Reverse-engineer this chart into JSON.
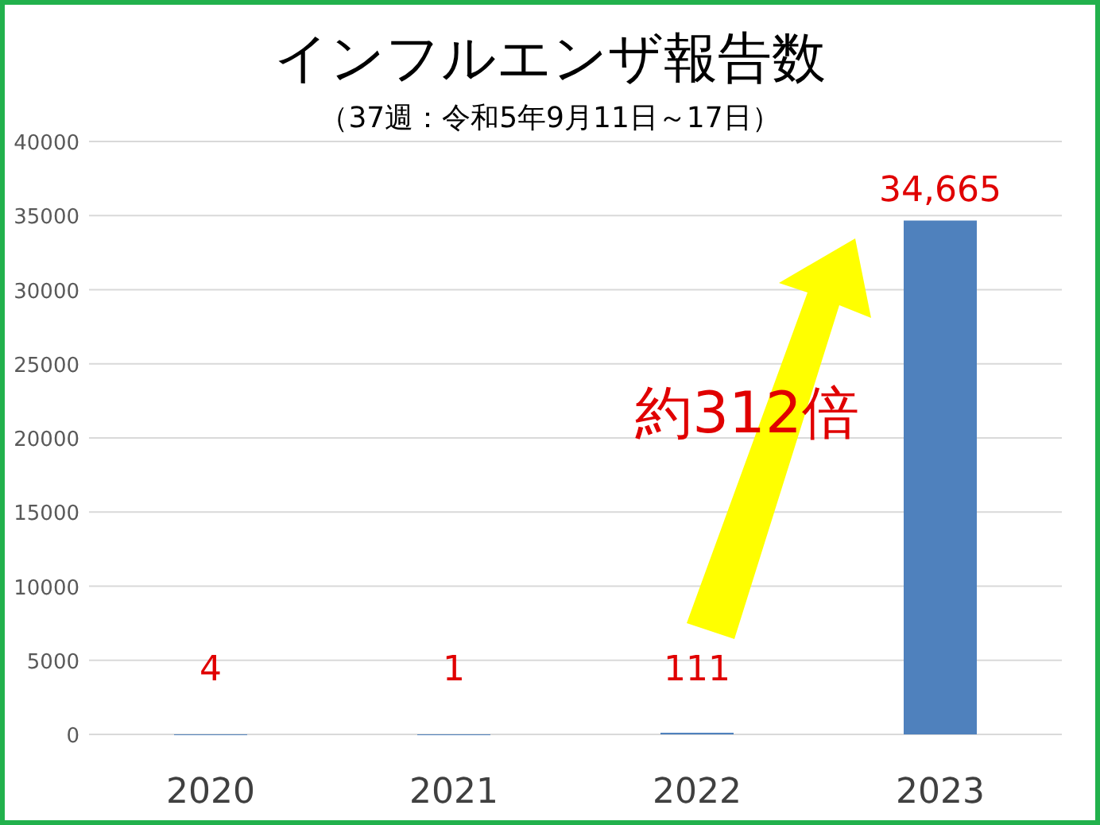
{
  "chart_data": {
    "type": "bar",
    "title": "インフルエンザ報告数",
    "subtitle": "（37週：令和5年9月11日～17日）",
    "categories": [
      "2020",
      "2021",
      "2022",
      "2023"
    ],
    "values": [
      4,
      1,
      111,
      34665
    ],
    "value_labels": [
      "4",
      "1",
      "111",
      "34,665"
    ],
    "color": "#4f81bd",
    "ylim": [
      0,
      40000
    ],
    "yticks": [
      0,
      5000,
      10000,
      15000,
      20000,
      25000,
      30000,
      35000,
      40000
    ],
    "grid": "y",
    "annotations": [
      "約312倍"
    ]
  }
}
